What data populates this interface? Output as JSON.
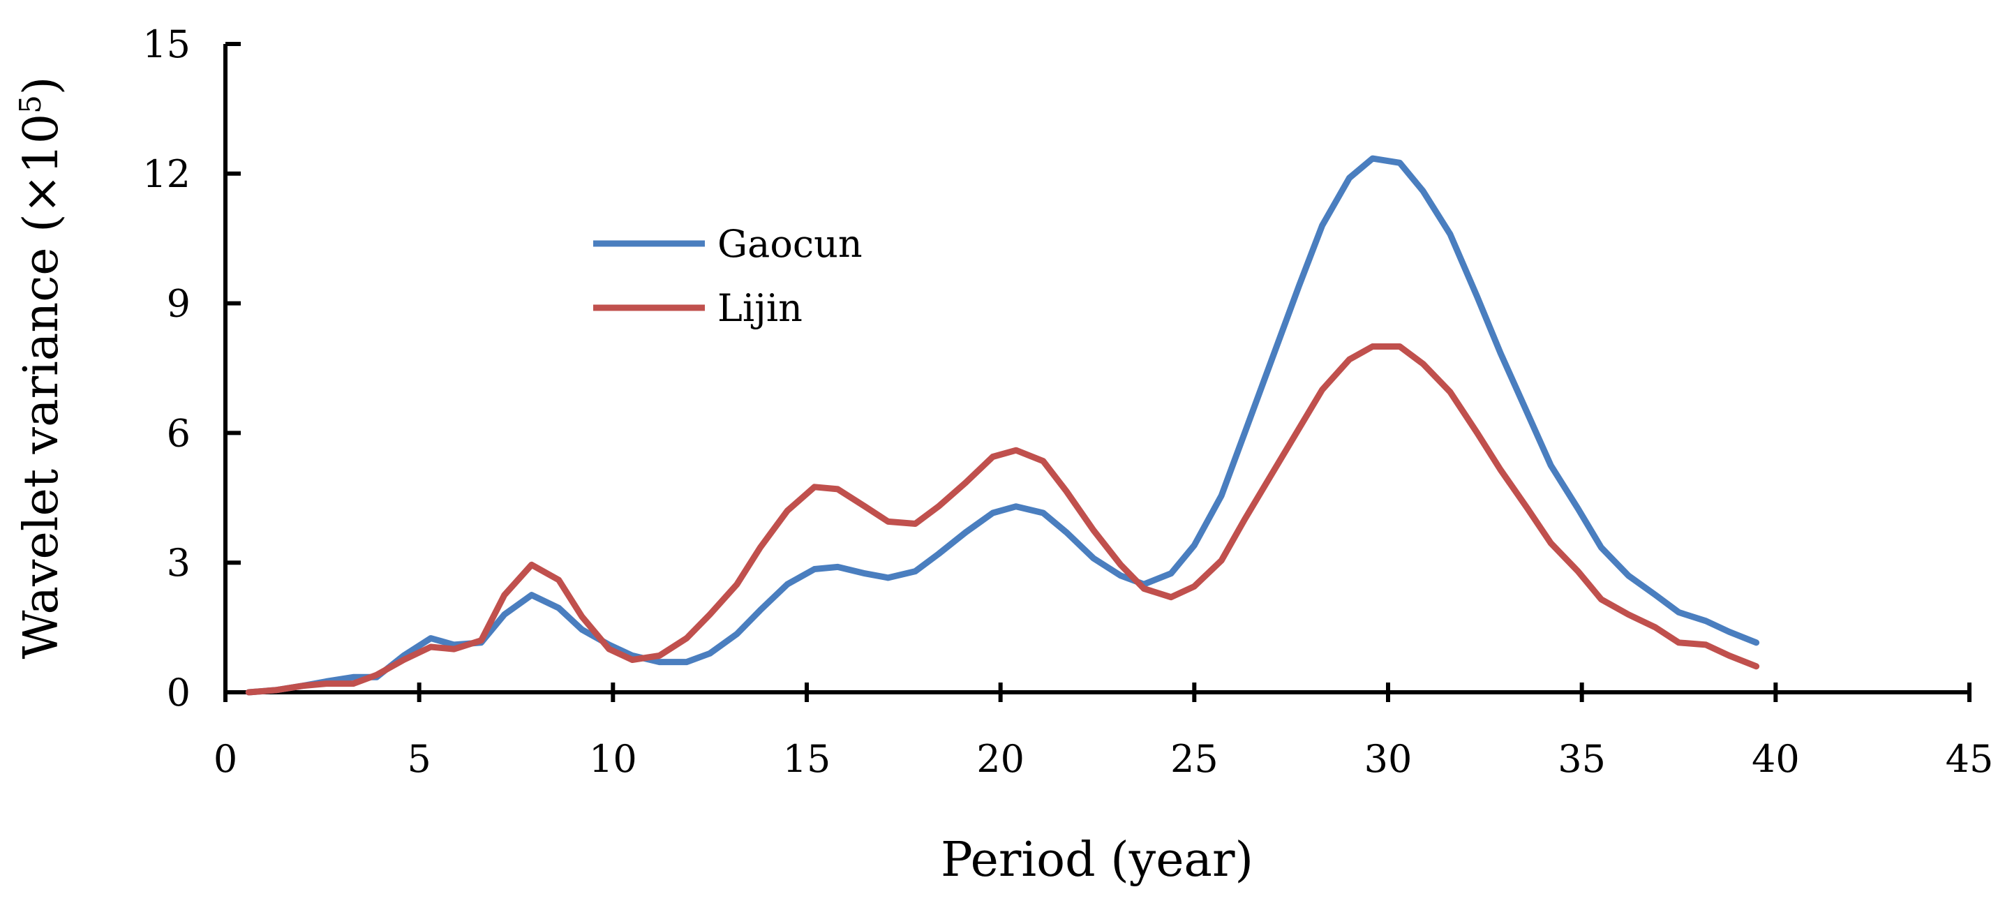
{
  "chart_data": {
    "type": "line",
    "title": "",
    "xlabel": "Period (year)",
    "ylabel": "Wavelet variance (×10",
    "ylabel_exponent": "5",
    "ylabel_close": ")",
    "xlim": [
      0,
      45
    ],
    "ylim": [
      0,
      15
    ],
    "xticks": [
      "0",
      "5",
      "10",
      "15",
      "20",
      "25",
      "30",
      "35",
      "40",
      "45"
    ],
    "yticks": [
      "0",
      "3",
      "6",
      "9",
      "12",
      "15"
    ],
    "grid": false,
    "legend": "upper-left-center",
    "series": [
      {
        "name": "Gaocun",
        "color": "#4a7ebf",
        "points": [
          [
            0.6,
            0.0
          ],
          [
            1.3,
            0.05
          ],
          [
            2.0,
            0.15
          ],
          [
            2.6,
            0.25
          ],
          [
            3.3,
            0.35
          ],
          [
            3.9,
            0.35
          ],
          [
            4.6,
            0.85
          ],
          [
            5.3,
            1.25
          ],
          [
            5.9,
            1.1
          ],
          [
            6.6,
            1.15
          ],
          [
            7.2,
            1.8
          ],
          [
            7.9,
            2.25
          ],
          [
            8.6,
            1.95
          ],
          [
            9.2,
            1.45
          ],
          [
            9.9,
            1.1
          ],
          [
            10.5,
            0.85
          ],
          [
            11.2,
            0.7
          ],
          [
            11.9,
            0.7
          ],
          [
            12.5,
            0.9
          ],
          [
            13.2,
            1.35
          ],
          [
            13.8,
            1.9
          ],
          [
            14.5,
            2.5
          ],
          [
            15.2,
            2.85
          ],
          [
            15.8,
            2.9
          ],
          [
            16.5,
            2.75
          ],
          [
            17.1,
            2.65
          ],
          [
            17.8,
            2.8
          ],
          [
            18.4,
            3.2
          ],
          [
            19.1,
            3.7
          ],
          [
            19.8,
            4.15
          ],
          [
            20.4,
            4.3
          ],
          [
            21.1,
            4.15
          ],
          [
            21.7,
            3.7
          ],
          [
            22.4,
            3.1
          ],
          [
            23.1,
            2.7
          ],
          [
            23.7,
            2.5
          ],
          [
            24.4,
            2.75
          ],
          [
            25.0,
            3.4
          ],
          [
            25.7,
            4.55
          ],
          [
            26.3,
            6.0
          ],
          [
            27.0,
            7.7
          ],
          [
            27.7,
            9.4
          ],
          [
            28.3,
            10.8
          ],
          [
            29.0,
            11.9
          ],
          [
            29.6,
            12.35
          ],
          [
            30.3,
            12.25
          ],
          [
            30.9,
            11.6
          ],
          [
            31.6,
            10.6
          ],
          [
            32.3,
            9.15
          ],
          [
            32.9,
            7.85
          ],
          [
            33.6,
            6.45
          ],
          [
            34.2,
            5.25
          ],
          [
            34.9,
            4.25
          ],
          [
            35.5,
            3.35
          ],
          [
            36.2,
            2.7
          ],
          [
            36.9,
            2.25
          ],
          [
            37.5,
            1.85
          ],
          [
            38.2,
            1.65
          ],
          [
            38.8,
            1.4
          ],
          [
            39.5,
            1.15
          ]
        ]
      },
      {
        "name": "Lijin",
        "color": "#c0504d",
        "points": [
          [
            0.6,
            0.0
          ],
          [
            1.3,
            0.05
          ],
          [
            2.0,
            0.15
          ],
          [
            2.6,
            0.2
          ],
          [
            3.3,
            0.2
          ],
          [
            3.9,
            0.4
          ],
          [
            4.6,
            0.75
          ],
          [
            5.3,
            1.05
          ],
          [
            5.9,
            1.0
          ],
          [
            6.6,
            1.2
          ],
          [
            7.2,
            2.25
          ],
          [
            7.9,
            2.95
          ],
          [
            8.6,
            2.6
          ],
          [
            9.2,
            1.75
          ],
          [
            9.9,
            1.0
          ],
          [
            10.5,
            0.75
          ],
          [
            11.2,
            0.85
          ],
          [
            11.9,
            1.25
          ],
          [
            12.5,
            1.8
          ],
          [
            13.2,
            2.5
          ],
          [
            13.8,
            3.35
          ],
          [
            14.5,
            4.2
          ],
          [
            15.2,
            4.75
          ],
          [
            15.8,
            4.7
          ],
          [
            16.5,
            4.3
          ],
          [
            17.1,
            3.95
          ],
          [
            17.8,
            3.9
          ],
          [
            18.4,
            4.3
          ],
          [
            19.1,
            4.85
          ],
          [
            19.8,
            5.45
          ],
          [
            20.4,
            5.6
          ],
          [
            21.1,
            5.35
          ],
          [
            21.7,
            4.65
          ],
          [
            22.4,
            3.75
          ],
          [
            23.1,
            2.95
          ],
          [
            23.7,
            2.4
          ],
          [
            24.4,
            2.2
          ],
          [
            25.0,
            2.45
          ],
          [
            25.7,
            3.05
          ],
          [
            26.3,
            4.0
          ],
          [
            27.0,
            5.05
          ],
          [
            27.7,
            6.1
          ],
          [
            28.3,
            7.0
          ],
          [
            29.0,
            7.7
          ],
          [
            29.6,
            8.0
          ],
          [
            30.3,
            8.0
          ],
          [
            30.9,
            7.6
          ],
          [
            31.6,
            6.95
          ],
          [
            32.3,
            6.0
          ],
          [
            32.9,
            5.15
          ],
          [
            33.6,
            4.25
          ],
          [
            34.2,
            3.45
          ],
          [
            34.9,
            2.8
          ],
          [
            35.5,
            2.15
          ],
          [
            36.2,
            1.8
          ],
          [
            36.9,
            1.5
          ],
          [
            37.5,
            1.15
          ],
          [
            38.2,
            1.1
          ],
          [
            38.8,
            0.85
          ],
          [
            39.5,
            0.6
          ]
        ]
      }
    ]
  }
}
